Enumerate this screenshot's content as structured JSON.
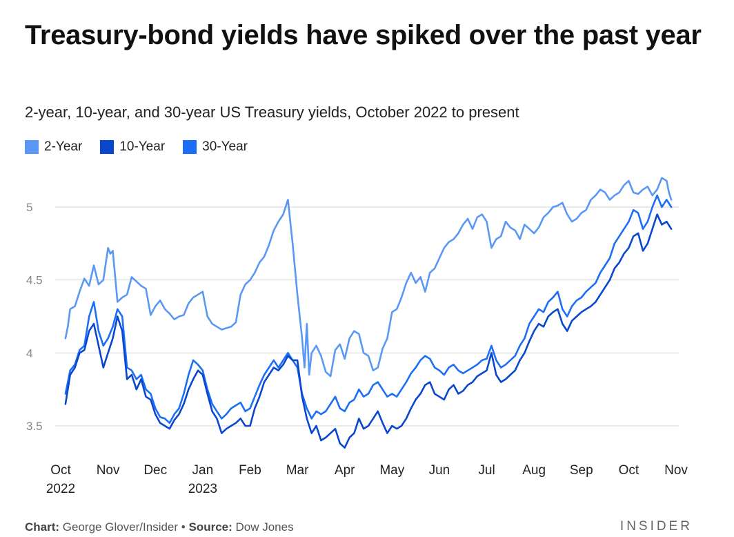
{
  "chart_data": {
    "type": "line",
    "title": "Treasury-bond yields have spiked over the past year",
    "subtitle": "2-year, 10-year, and 30-year US Treasury yields, October 2022 to present",
    "xlabel": "",
    "ylabel": "",
    "ylim": [
      3.3,
      5.25
    ],
    "yticks": [
      3.5,
      4,
      4.5,
      5
    ],
    "ytick_labels": [
      "3.5",
      "4",
      "4.5",
      "5"
    ],
    "grid": true,
    "legend_position": "top-left",
    "x_range": [
      0,
      13
    ],
    "x_ticks": [
      {
        "pos": 0,
        "label": "Oct",
        "sub": "2022"
      },
      {
        "pos": 1,
        "label": "Nov",
        "sub": ""
      },
      {
        "pos": 2,
        "label": "Dec",
        "sub": ""
      },
      {
        "pos": 3,
        "label": "Jan",
        "sub": "2023"
      },
      {
        "pos": 4,
        "label": "Feb",
        "sub": ""
      },
      {
        "pos": 5,
        "label": "Mar",
        "sub": ""
      },
      {
        "pos": 6,
        "label": "Apr",
        "sub": ""
      },
      {
        "pos": 7,
        "label": "May",
        "sub": ""
      },
      {
        "pos": 8,
        "label": "Jun",
        "sub": ""
      },
      {
        "pos": 9,
        "label": "Jul",
        "sub": ""
      },
      {
        "pos": 10,
        "label": "Aug",
        "sub": ""
      },
      {
        "pos": 11,
        "label": "Sep",
        "sub": ""
      },
      {
        "pos": 12,
        "label": "Oct",
        "sub": ""
      },
      {
        "pos": 13,
        "label": "Nov",
        "sub": ""
      }
    ],
    "series": [
      {
        "name": "2-Year",
        "color": "#5b97f5",
        "x": [
          0.1,
          0.15,
          0.2,
          0.25,
          0.3,
          0.4,
          0.5,
          0.6,
          0.7,
          0.8,
          0.9,
          1.0,
          1.05,
          1.1,
          1.2,
          1.3,
          1.4,
          1.5,
          1.6,
          1.7,
          1.8,
          1.9,
          2.0,
          2.1,
          2.2,
          2.3,
          2.4,
          2.5,
          2.6,
          2.7,
          2.8,
          2.9,
          3.0,
          3.1,
          3.2,
          3.3,
          3.4,
          3.5,
          3.6,
          3.7,
          3.8,
          3.9,
          4.0,
          4.1,
          4.2,
          4.3,
          4.4,
          4.5,
          4.6,
          4.7,
          4.8,
          4.9,
          5.0,
          5.1,
          5.15,
          5.2,
          5.25,
          5.3,
          5.4,
          5.5,
          5.6,
          5.7,
          5.8,
          5.9,
          6.0,
          6.1,
          6.2,
          6.3,
          6.4,
          6.5,
          6.6,
          6.7,
          6.8,
          6.9,
          7.0,
          7.1,
          7.2,
          7.3,
          7.4,
          7.5,
          7.6,
          7.7,
          7.8,
          7.9,
          8.0,
          8.1,
          8.2,
          8.3,
          8.4,
          8.5,
          8.6,
          8.7,
          8.8,
          8.9,
          9.0,
          9.1,
          9.2,
          9.3,
          9.4,
          9.5,
          9.6,
          9.7,
          9.8,
          9.9,
          10.0,
          10.1,
          10.2,
          10.3,
          10.4,
          10.5,
          10.6,
          10.7,
          10.8,
          10.9,
          11.0,
          11.1,
          11.2,
          11.3,
          11.4,
          11.5,
          11.6,
          11.7,
          11.8,
          11.9,
          12.0,
          12.1,
          12.2,
          12.3,
          12.4,
          12.5,
          12.6,
          12.7,
          12.8,
          12.85,
          12.9
        ],
        "values": [
          4.1,
          4.18,
          4.3,
          4.31,
          4.32,
          4.42,
          4.51,
          4.46,
          4.6,
          4.47,
          4.5,
          4.72,
          4.68,
          4.7,
          4.35,
          4.38,
          4.4,
          4.52,
          4.49,
          4.46,
          4.44,
          4.26,
          4.32,
          4.36,
          4.3,
          4.27,
          4.23,
          4.25,
          4.26,
          4.34,
          4.38,
          4.4,
          4.42,
          4.25,
          4.2,
          4.18,
          4.16,
          4.17,
          4.18,
          4.21,
          4.4,
          4.47,
          4.5,
          4.55,
          4.62,
          4.66,
          4.74,
          4.84,
          4.9,
          4.95,
          5.05,
          4.75,
          4.4,
          4.1,
          3.9,
          4.2,
          3.85,
          4.0,
          4.05,
          3.98,
          3.87,
          3.84,
          4.02,
          4.06,
          3.96,
          4.1,
          4.15,
          4.13,
          4.0,
          3.98,
          3.88,
          3.9,
          4.03,
          4.1,
          4.28,
          4.3,
          4.38,
          4.48,
          4.55,
          4.48,
          4.52,
          4.42,
          4.55,
          4.58,
          4.65,
          4.72,
          4.76,
          4.78,
          4.82,
          4.88,
          4.92,
          4.85,
          4.93,
          4.95,
          4.9,
          4.72,
          4.78,
          4.8,
          4.9,
          4.86,
          4.84,
          4.78,
          4.88,
          4.85,
          4.82,
          4.86,
          4.93,
          4.96,
          5.0,
          5.01,
          5.03,
          4.95,
          4.9,
          4.92,
          4.96,
          4.98,
          5.05,
          5.08,
          5.12,
          5.1,
          5.05,
          5.08,
          5.1,
          5.15,
          5.18,
          5.1,
          5.09,
          5.12,
          5.14,
          5.08,
          5.12,
          5.2,
          5.18,
          5.1,
          5.05
        ]
      },
      {
        "name": "10-Year",
        "color": "#0a47cf",
        "x": [
          0.1,
          0.2,
          0.3,
          0.4,
          0.5,
          0.6,
          0.7,
          0.8,
          0.9,
          1.0,
          1.1,
          1.2,
          1.3,
          1.4,
          1.5,
          1.6,
          1.7,
          1.8,
          1.9,
          2.0,
          2.1,
          2.2,
          2.3,
          2.4,
          2.5,
          2.6,
          2.7,
          2.8,
          2.9,
          3.0,
          3.1,
          3.2,
          3.3,
          3.4,
          3.5,
          3.6,
          3.7,
          3.8,
          3.9,
          4.0,
          4.1,
          4.2,
          4.3,
          4.4,
          4.5,
          4.6,
          4.7,
          4.8,
          4.9,
          5.0,
          5.1,
          5.2,
          5.3,
          5.4,
          5.5,
          5.6,
          5.7,
          5.8,
          5.9,
          6.0,
          6.1,
          6.2,
          6.3,
          6.4,
          6.5,
          6.6,
          6.7,
          6.8,
          6.9,
          7.0,
          7.1,
          7.2,
          7.3,
          7.4,
          7.5,
          7.6,
          7.7,
          7.8,
          7.9,
          8.0,
          8.1,
          8.2,
          8.3,
          8.4,
          8.5,
          8.6,
          8.7,
          8.8,
          8.9,
          9.0,
          9.1,
          9.2,
          9.3,
          9.4,
          9.5,
          9.6,
          9.7,
          9.8,
          9.9,
          10.0,
          10.1,
          10.2,
          10.3,
          10.4,
          10.5,
          10.6,
          10.7,
          10.8,
          10.9,
          11.0,
          11.1,
          11.2,
          11.3,
          11.4,
          11.5,
          11.6,
          11.7,
          11.8,
          11.9,
          12.0,
          12.1,
          12.2,
          12.3,
          12.4,
          12.5,
          12.6,
          12.7,
          12.8,
          12.9
        ],
        "values": [
          3.65,
          3.85,
          3.9,
          4.0,
          4.02,
          4.15,
          4.2,
          4.05,
          3.9,
          4.0,
          4.1,
          4.25,
          4.15,
          3.82,
          3.85,
          3.75,
          3.82,
          3.7,
          3.68,
          3.58,
          3.52,
          3.5,
          3.48,
          3.54,
          3.58,
          3.65,
          3.75,
          3.82,
          3.88,
          3.85,
          3.72,
          3.6,
          3.55,
          3.45,
          3.48,
          3.5,
          3.52,
          3.55,
          3.5,
          3.5,
          3.62,
          3.7,
          3.8,
          3.85,
          3.9,
          3.88,
          3.92,
          3.98,
          3.95,
          3.95,
          3.7,
          3.55,
          3.45,
          3.5,
          3.4,
          3.42,
          3.45,
          3.48,
          3.38,
          3.35,
          3.42,
          3.45,
          3.55,
          3.48,
          3.5,
          3.55,
          3.6,
          3.52,
          3.45,
          3.5,
          3.48,
          3.5,
          3.55,
          3.62,
          3.68,
          3.72,
          3.78,
          3.8,
          3.72,
          3.7,
          3.68,
          3.75,
          3.78,
          3.72,
          3.74,
          3.78,
          3.8,
          3.84,
          3.86,
          3.88,
          4.0,
          3.85,
          3.8,
          3.82,
          3.85,
          3.88,
          3.95,
          4.0,
          4.08,
          4.15,
          4.2,
          4.18,
          4.25,
          4.28,
          4.3,
          4.2,
          4.15,
          4.22,
          4.25,
          4.28,
          4.3,
          4.32,
          4.35,
          4.4,
          4.45,
          4.5,
          4.58,
          4.62,
          4.68,
          4.72,
          4.8,
          4.82,
          4.7,
          4.75,
          4.85,
          4.95,
          4.88,
          4.9,
          4.85
        ]
      },
      {
        "name": "30-Year",
        "color": "#1b6ef5",
        "x": [
          0.1,
          0.2,
          0.3,
          0.4,
          0.5,
          0.6,
          0.7,
          0.8,
          0.9,
          1.0,
          1.1,
          1.2,
          1.3,
          1.4,
          1.5,
          1.6,
          1.7,
          1.8,
          1.9,
          2.0,
          2.1,
          2.2,
          2.3,
          2.4,
          2.5,
          2.6,
          2.7,
          2.8,
          2.9,
          3.0,
          3.1,
          3.2,
          3.3,
          3.4,
          3.5,
          3.6,
          3.7,
          3.8,
          3.9,
          4.0,
          4.1,
          4.2,
          4.3,
          4.4,
          4.5,
          4.6,
          4.7,
          4.8,
          4.9,
          5.0,
          5.1,
          5.2,
          5.3,
          5.4,
          5.5,
          5.6,
          5.7,
          5.8,
          5.9,
          6.0,
          6.1,
          6.2,
          6.3,
          6.4,
          6.5,
          6.6,
          6.7,
          6.8,
          6.9,
          7.0,
          7.1,
          7.2,
          7.3,
          7.4,
          7.5,
          7.6,
          7.7,
          7.8,
          7.9,
          8.0,
          8.1,
          8.2,
          8.3,
          8.4,
          8.5,
          8.6,
          8.7,
          8.8,
          8.9,
          9.0,
          9.1,
          9.2,
          9.3,
          9.4,
          9.5,
          9.6,
          9.7,
          9.8,
          9.9,
          10.0,
          10.1,
          10.2,
          10.3,
          10.4,
          10.5,
          10.6,
          10.7,
          10.8,
          10.9,
          11.0,
          11.1,
          11.2,
          11.3,
          11.4,
          11.5,
          11.6,
          11.7,
          11.8,
          11.9,
          12.0,
          12.1,
          12.2,
          12.3,
          12.4,
          12.5,
          12.6,
          12.7,
          12.8,
          12.9
        ],
        "values": [
          3.72,
          3.88,
          3.92,
          4.02,
          4.05,
          4.25,
          4.35,
          4.15,
          4.05,
          4.1,
          4.18,
          4.3,
          4.25,
          3.9,
          3.88,
          3.82,
          3.85,
          3.75,
          3.72,
          3.62,
          3.56,
          3.55,
          3.52,
          3.58,
          3.62,
          3.72,
          3.85,
          3.95,
          3.92,
          3.88,
          3.75,
          3.65,
          3.6,
          3.55,
          3.58,
          3.62,
          3.64,
          3.66,
          3.6,
          3.62,
          3.7,
          3.78,
          3.85,
          3.9,
          3.95,
          3.9,
          3.95,
          4.0,
          3.95,
          3.9,
          3.72,
          3.62,
          3.55,
          3.6,
          3.58,
          3.6,
          3.65,
          3.7,
          3.62,
          3.6,
          3.66,
          3.68,
          3.75,
          3.7,
          3.72,
          3.78,
          3.8,
          3.75,
          3.7,
          3.72,
          3.7,
          3.75,
          3.8,
          3.86,
          3.9,
          3.95,
          3.98,
          3.96,
          3.9,
          3.88,
          3.85,
          3.9,
          3.92,
          3.88,
          3.86,
          3.88,
          3.9,
          3.92,
          3.95,
          3.96,
          4.05,
          3.95,
          3.9,
          3.92,
          3.95,
          3.98,
          4.05,
          4.1,
          4.2,
          4.25,
          4.3,
          4.28,
          4.35,
          4.38,
          4.42,
          4.3,
          4.25,
          4.32,
          4.36,
          4.38,
          4.42,
          4.45,
          4.48,
          4.55,
          4.6,
          4.65,
          4.75,
          4.8,
          4.85,
          4.9,
          4.98,
          4.96,
          4.85,
          4.9,
          5.0,
          5.08,
          5.0,
          5.05,
          5.0
        ]
      }
    ]
  },
  "legend": [
    {
      "label": "2-Year",
      "color": "#5b97f5"
    },
    {
      "label": "10-Year",
      "color": "#0a47cf"
    },
    {
      "label": "30-Year",
      "color": "#1b6ef5"
    }
  ],
  "footer": {
    "chart_label": "Chart:",
    "chart_author": "George Glover/Insider",
    "separator": "•",
    "source_label": "Source:",
    "source_name": "Dow Jones",
    "brand": "INSIDER"
  }
}
